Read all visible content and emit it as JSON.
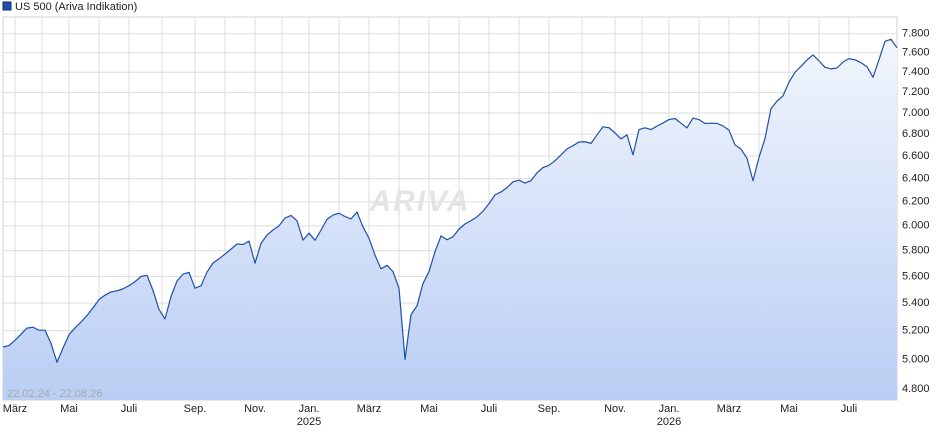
{
  "chart_data": {
    "type": "area",
    "date_range": "22.02.24 - 22.08.26",
    "watermark": "ARIVA",
    "log_scale": true,
    "grid": true,
    "ylim": [
      4730,
      7980
    ],
    "yticks": [
      {
        "value": 4800,
        "label": "4.800"
      },
      {
        "value": 5000,
        "label": "5.000"
      },
      {
        "value": 5200,
        "label": "5.200"
      },
      {
        "value": 5400,
        "label": "5.400"
      },
      {
        "value": 5600,
        "label": "5.600"
      },
      {
        "value": 5800,
        "label": "5.800"
      },
      {
        "value": 6000,
        "label": "6.000"
      },
      {
        "value": 6200,
        "label": "6.200"
      },
      {
        "value": 6400,
        "label": "6.400"
      },
      {
        "value": 6600,
        "label": "6.600"
      },
      {
        "value": 6800,
        "label": "6.800"
      },
      {
        "value": 7000,
        "label": "7.000"
      },
      {
        "value": 7200,
        "label": "7.200"
      },
      {
        "value": 7400,
        "label": "7.400"
      },
      {
        "value": 7600,
        "label": "7.600"
      },
      {
        "value": 7800,
        "label": "7.800"
      }
    ],
    "categories": [
      null,
      null,
      "März",
      null,
      null,
      null,
      null,
      null,
      null,
      null,
      null,
      "Mai",
      null,
      null,
      null,
      null,
      null,
      null,
      null,
      null,
      null,
      "Juli",
      null,
      null,
      null,
      null,
      null,
      null,
      null,
      null,
      null,
      null,
      "Sep.",
      null,
      null,
      null,
      null,
      null,
      null,
      null,
      null,
      null,
      "Nov.",
      null,
      null,
      null,
      null,
      null,
      null,
      null,
      null,
      "Jan. 2025",
      null,
      null,
      null,
      null,
      null,
      null,
      null,
      null,
      null,
      "März",
      null,
      null,
      null,
      null,
      null,
      null,
      null,
      null,
      null,
      "Mai",
      null,
      null,
      null,
      null,
      null,
      null,
      null,
      null,
      null,
      "Juli",
      null,
      null,
      null,
      null,
      null,
      null,
      null,
      null,
      null,
      "Sep.",
      null,
      null,
      null,
      null,
      null,
      null,
      null,
      null,
      null,
      null,
      "Nov.",
      null,
      null,
      null,
      null,
      null,
      null,
      null,
      null,
      "Jan. 2026",
      null,
      null,
      null,
      null,
      null,
      null,
      null,
      null,
      null,
      "März",
      null,
      null,
      null,
      null,
      null,
      null,
      null,
      null,
      null,
      "Mai",
      null,
      null,
      null,
      null,
      null,
      null,
      null,
      null,
      null,
      "Juli",
      null,
      null,
      null,
      null,
      null,
      null,
      null,
      null
    ],
    "series": [
      {
        "name": "US 500 (Ariva Indikation)",
        "color": "#1f4fa8",
        "values": [
          5085,
          5095,
          5132,
          5175,
          5218,
          5224,
          5203,
          5203,
          5111,
          4980,
          5078,
          5171,
          5220,
          5261,
          5309,
          5364,
          5426,
          5458,
          5482,
          5490,
          5506,
          5529,
          5560,
          5599,
          5608,
          5494,
          5353,
          5284,
          5448,
          5564,
          5617,
          5631,
          5510,
          5528,
          5633,
          5703,
          5736,
          5773,
          5812,
          5853,
          5849,
          5876,
          5702,
          5858,
          5925,
          5966,
          6000,
          6064,
          6086,
          6041,
          5884,
          5940,
          5883,
          5965,
          6053,
          6089,
          6104,
          6077,
          6057,
          6114,
          5991,
          5899,
          5765,
          5658,
          5685,
          5637,
          5509,
          5000,
          5315,
          5379,
          5546,
          5636,
          5792,
          5918,
          5887,
          5911,
          5973,
          6015,
          6043,
          6074,
          6121,
          6185,
          6259,
          6284,
          6321,
          6372,
          6386,
          6361,
          6382,
          6450,
          6497,
          6517,
          6558,
          6610,
          6665,
          6694,
          6728,
          6730,
          6715,
          6793,
          6869,
          6860,
          6812,
          6756,
          6793,
          6611,
          6843,
          6859,
          6843,
          6875,
          6905,
          6937,
          6947,
          6903,
          6859,
          6951,
          6936,
          6900,
          6903,
          6901,
          6877,
          6837,
          6702,
          6663,
          6580,
          6381,
          6588,
          6759,
          7042,
          7114,
          7166,
          7300,
          7400,
          7460,
          7525,
          7577,
          7516,
          7450,
          7434,
          7443,
          7504,
          7539,
          7527,
          7497,
          7456,
          7349,
          7528,
          7720,
          7741,
          7652
        ]
      }
    ]
  }
}
